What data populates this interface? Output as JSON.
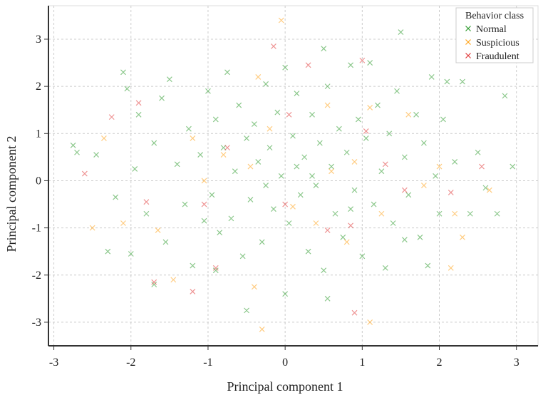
{
  "chart_data": {
    "type": "scatter",
    "x_label": "Principal component 1",
    "y_label": "Principal component 2",
    "legend_title": "Behavior class",
    "legend_position": "upper right",
    "grid": true,
    "xlim": [
      -3.07,
      3.28
    ],
    "ylim": [
      -3.5,
      3.71
    ],
    "xticks": [
      -3,
      -2,
      -1,
      0,
      1,
      2,
      3
    ],
    "yticks": [
      -3,
      -2,
      -1,
      0,
      1,
      2,
      3
    ],
    "series": [
      {
        "name": "Normal",
        "color": "#2e9a2e",
        "x": [
          -2.75,
          -2.7,
          -2.3,
          -2.1,
          -2.05,
          -1.9,
          -2.2,
          -2.0,
          -1.8,
          -1.7,
          -1.6,
          -1.55,
          -1.5,
          -1.4,
          -1.3,
          -1.25,
          -1.2,
          -1.1,
          -1.0,
          -0.95,
          -0.9,
          -0.85,
          -0.8,
          -0.75,
          -0.7,
          -0.65,
          -0.6,
          -0.55,
          -0.5,
          -0.45,
          -0.4,
          -0.35,
          -0.3,
          -0.25,
          -0.2,
          -0.15,
          -0.1,
          -0.05,
          0.0,
          0.0,
          0.05,
          0.1,
          0.15,
          0.2,
          0.25,
          0.3,
          0.35,
          0.4,
          0.45,
          0.5,
          0.55,
          0.6,
          0.65,
          0.5,
          0.7,
          0.75,
          0.8,
          0.85,
          0.9,
          0.95,
          1.0,
          1.05,
          1.1,
          1.15,
          1.2,
          1.25,
          1.3,
          1.35,
          1.4,
          1.45,
          1.5,
          1.55,
          1.6,
          1.7,
          1.75,
          1.8,
          1.85,
          1.9,
          1.95,
          2.0,
          2.05,
          2.1,
          2.2,
          2.3,
          2.4,
          2.5,
          2.6,
          2.75,
          2.85,
          2.95,
          -0.5,
          0.55,
          -1.7,
          -0.9,
          0.35,
          -0.25,
          0.15,
          -1.05,
          0.85,
          -2.45,
          -1.95,
          1.55
        ],
        "values": [
          0.75,
          0.6,
          -1.5,
          2.3,
          1.95,
          1.4,
          -0.35,
          -1.55,
          -0.7,
          0.8,
          1.75,
          -1.3,
          2.15,
          0.35,
          -0.5,
          1.1,
          -1.8,
          0.55,
          1.9,
          -0.3,
          1.3,
          -1.1,
          0.7,
          2.3,
          -0.8,
          0.2,
          1.6,
          -1.6,
          0.9,
          -0.4,
          1.2,
          0.4,
          -1.3,
          2.05,
          0.7,
          -0.6,
          1.45,
          0.1,
          -2.4,
          2.4,
          -0.9,
          0.95,
          1.85,
          -0.3,
          0.5,
          -1.5,
          1.4,
          -0.1,
          0.8,
          -1.9,
          2.0,
          0.3,
          -0.7,
          2.8,
          1.1,
          -1.2,
          0.6,
          2.45,
          -0.2,
          1.3,
          -1.6,
          0.9,
          2.5,
          -0.5,
          1.6,
          0.2,
          -1.85,
          1.0,
          -0.9,
          1.9,
          3.15,
          0.5,
          -0.3,
          1.4,
          -1.2,
          0.8,
          -1.8,
          2.2,
          0.1,
          -0.7,
          1.3,
          2.1,
          0.4,
          2.1,
          -0.7,
          0.6,
          -0.15,
          -0.7,
          1.8,
          0.3,
          -2.75,
          -2.5,
          -2.2,
          -1.9,
          0.1,
          -0.1,
          0.3,
          -0.85,
          -0.6,
          0.55,
          0.25,
          -1.25
        ]
      },
      {
        "name": "Suspicious",
        "color": "#ffa31a",
        "x": [
          -0.3,
          -0.05,
          1.1,
          -2.5,
          -2.35,
          -2.1,
          -1.65,
          -1.2,
          -0.8,
          -0.45,
          -0.2,
          0.1,
          0.4,
          0.6,
          0.9,
          1.1,
          1.25,
          1.6,
          1.8,
          2.0,
          2.2,
          2.3,
          2.65,
          -1.45,
          -0.4,
          -0.35,
          0.8,
          2.15,
          0.55,
          -1.05
        ],
        "values": [
          -3.15,
          3.4,
          -3.0,
          -1.0,
          0.9,
          -0.9,
          -1.05,
          0.9,
          0.55,
          0.3,
          1.1,
          -0.55,
          -0.9,
          0.2,
          0.4,
          1.55,
          -0.7,
          1.4,
          -0.1,
          0.3,
          -0.7,
          -1.2,
          -0.2,
          -2.1,
          -2.25,
          2.2,
          -1.3,
          -1.85,
          1.6,
          0.0
        ]
      },
      {
        "name": "Fraudulent",
        "color": "#e03a3a",
        "x": [
          -2.6,
          -2.25,
          -1.9,
          -1.7,
          -1.8,
          -1.2,
          -0.9,
          -1.05,
          -0.75,
          -0.15,
          0.05,
          0.3,
          0.0,
          0.55,
          0.85,
          0.9,
          1.0,
          1.3,
          1.55,
          2.15,
          2.55,
          1.05
        ],
        "values": [
          0.15,
          1.35,
          1.65,
          -2.15,
          -0.45,
          -2.35,
          -1.85,
          -0.5,
          0.7,
          2.85,
          1.4,
          2.45,
          -0.5,
          -1.05,
          -0.95,
          -2.8,
          2.55,
          0.35,
          -0.2,
          -0.25,
          0.3,
          1.05
        ]
      }
    ]
  }
}
